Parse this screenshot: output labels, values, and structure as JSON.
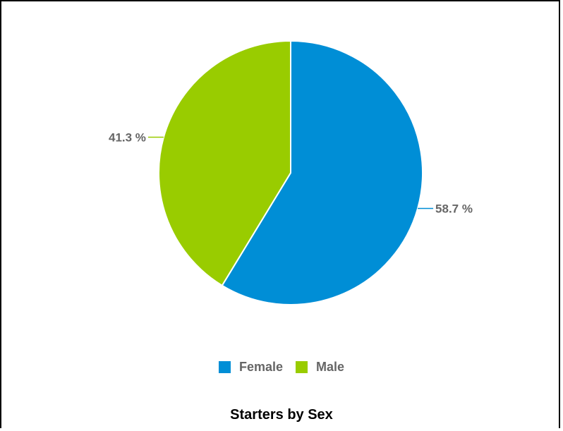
{
  "chart_data": {
    "type": "pie",
    "title": "Starters by Sex",
    "legend_position": "bottom",
    "slices": [
      {
        "name": "Female",
        "value": 58.7,
        "label": "58.7 %",
        "color": "#008ED6"
      },
      {
        "name": "Male",
        "value": 41.3,
        "label": "41.3 %",
        "color": "#99CC00"
      }
    ]
  }
}
